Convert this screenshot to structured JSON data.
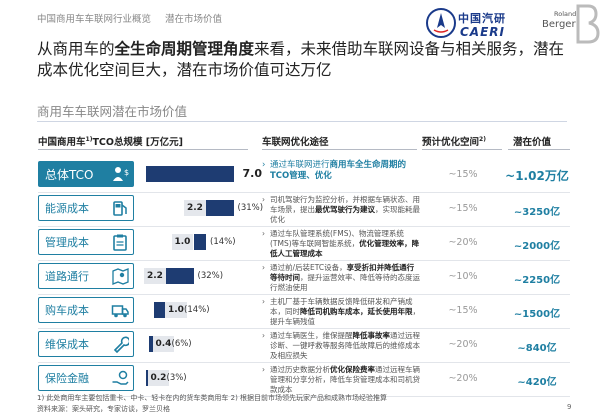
{
  "header": {
    "breadcrumb_1": "中国商用车车联网行业概览",
    "breadcrumb_2": "潜在市场价值",
    "caeri_cn": "中国汽研",
    "caeri_en": "CAERI",
    "rb_line1": "Roland",
    "rb_line2": "Berger"
  },
  "headline": {
    "part1": "从商用车的",
    "bold": "全生命周期管理角度",
    "part2": "来看，未来借助车联网设备与相关服务，潜在成本优化空间巨大，潜在市场价值可达万亿"
  },
  "subtitle": "商用车车联网潜在市场价值",
  "columns": {
    "tco_prefix": "中国商用车",
    "tco_sup": "1)",
    "tco_suffix": "TCO总规模 [万亿元]",
    "path": "车联网优化途径",
    "opt_prefix": "预计优化空间",
    "opt_sup": "2)",
    "value": "潜在价值"
  },
  "rows": [
    {
      "category": "总体TCO",
      "icon": "person-dollar-icon",
      "bar_value": "7.0",
      "bar_pct": "",
      "desc_plain": "通过车联网进行",
      "desc_bold": "商用车全生命周期的TCO管理、优化",
      "desc_rest": "",
      "opt": "~15%",
      "value": "~1.02万亿"
    },
    {
      "category": "能源成本",
      "icon": "fuel-pump-icon",
      "bar_value": "2.2",
      "bar_pct": "(31%)",
      "desc_plain": "司机驾驶行为监控分析，并根据车辆状态、用车场景，提出",
      "desc_bold": "最优驾驶行为建议",
      "desc_rest": "，实现能耗最优化",
      "opt": "~15%",
      "value": "~3250亿"
    },
    {
      "category": "管理成本",
      "icon": "clipboard-icon",
      "bar_value": "1.0",
      "bar_pct": "(14%)",
      "desc_plain": "通过车队管理系统(FMS)、物流管理系统(TMS)等车联网智能系统，",
      "desc_bold": "优化管理效率，降低人工管理成本",
      "desc_rest": "",
      "opt": "~20%",
      "value": "~2000亿"
    },
    {
      "category": "道路通行",
      "icon": "map-pin-icon",
      "bar_value": "2.2",
      "bar_pct": "(32%)",
      "desc_plain": "通过前/后装ETC设备，",
      "desc_bold": "享受折扣并降低通行等待时间",
      "desc_rest": "，提升运营效率、降低等待的态度运行燃油使用",
      "opt": "~10%",
      "value": "~2250亿"
    },
    {
      "category": "购车成本",
      "icon": "truck-icon",
      "bar_value": "1.0",
      "bar_pct": "(14%)",
      "desc_plain": "主机厂基于车辆数据反馈降低研发和产销成本，同时",
      "desc_bold": "降低司机购车成本，延长使用年限",
      "desc_rest": "，提升车辆残值",
      "opt": "~15%",
      "value": "~1500亿"
    },
    {
      "category": "维保成本",
      "icon": "wrench-icon",
      "bar_value": "0.4",
      "bar_pct": "(6%)",
      "desc_plain": "通过车辆医生，维保提醒",
      "desc_bold": "降低事故率",
      "desc_rest": "通过远程诊断、一键呼救等服务降低故障后的维修成本及相应损失",
      "opt": "~20%",
      "value": "~840亿"
    },
    {
      "category": "保险金融",
      "icon": "hand-coin-icon",
      "bar_value": "0.2",
      "bar_pct": "(3%)",
      "desc_plain": "通过历史数据分析",
      "desc_bold": "优化保险费率",
      "desc_rest": "通过远程车辆管理和分享分析，降低车货管理成本和司机贷款成本",
      "opt": "~20%",
      "value": "~420亿"
    }
  ],
  "chart_data": {
    "type": "bar",
    "title": "中国商用车TCO总规模 [万亿元]",
    "categories": [
      "总体TCO",
      "能源成本",
      "管理成本",
      "道路通行",
      "购车成本",
      "维保成本",
      "保险金融"
    ],
    "values": [
      7.0,
      2.2,
      1.0,
      2.2,
      1.0,
      0.4,
      0.2
    ],
    "offsets": [
      0,
      4.8,
      3.8,
      1.6,
      0.6,
      0.2,
      0.0
    ],
    "percent_labels": [
      "",
      "(31%)",
      "(14%)",
      "(32%)",
      "(14%)",
      "(6%)",
      "(3%)"
    ]
  },
  "footnotes": {
    "note": "1) 此处商用车主要包括重卡、中卡、轻卡在内的货车类商用车     2) 根据目前市场领先玩家产品和成熟市场经验推算",
    "source": "资料来源：案头研究，专家访谈，罗兰贝格",
    "page": "9"
  },
  "colors": {
    "accent": "#1f7fa2",
    "bar": "#1e3c72",
    "muted": "#999999"
  }
}
